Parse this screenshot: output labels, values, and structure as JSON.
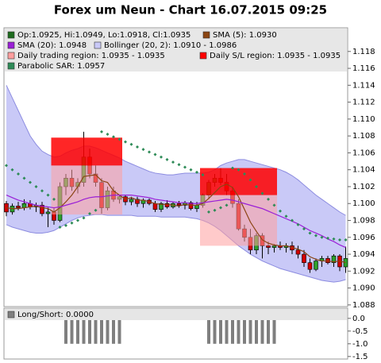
{
  "chart_data": [
    {
      "type": "candlestick",
      "title": "Forex um Neun - Chart 16.07.2015 09:25",
      "ylim": [
        1.0878,
        1.1208
      ],
      "yticks": [
        1.088,
        {
          "value": 1.09,
          "label": "1.090"
        },
        1.092,
        1.094,
        1.096,
        1.098,
        {
          "value": 1.1,
          "label": "1.100"
        },
        1.102,
        1.104,
        1.106,
        1.108,
        {
          "value": 1.11,
          "label": "1.110"
        },
        1.112,
        1.114,
        1.116,
        1.118
      ],
      "ohlc_name": "Op:1.0925, Hi:1.0949, Lo:1.0918, Cl:1.0935",
      "ohlc_color": "#1e6b1e",
      "up_color": "#2ca02c",
      "down_color": "#d40000",
      "open": [
        1.1,
        1.099,
        1.0997,
        1.0995,
        1.1,
        1.0996,
        1.0998,
        1.0988,
        1.099,
        1.098,
        1.102,
        1.103,
        1.102,
        1.1025,
        1.1055,
        1.1035,
        1.1025,
        1.0995,
        1.1015,
        1.1005,
        1.1008,
        1.1002,
        1.1005,
        1.1,
        1.1004,
        1.1,
        1.0993,
        1.1,
        1.0996,
        1.1,
        1.0998,
        1.1001,
        1.0994,
        1.0998,
        1.101,
        1.1025,
        1.103,
        1.1025,
        1.1015,
        1.1,
        1.097,
        1.096,
        1.0945,
        1.0962,
        1.095,
        1.0948,
        1.095,
        1.0948,
        1.095,
        1.0945,
        1.094,
        1.093,
        1.0922,
        1.0932,
        1.0935,
        1.093,
        1.0938,
        1.0925
      ],
      "high": [
        1.1003,
        1.1,
        1.1002,
        1.1005,
        1.1004,
        1.1001,
        1.1002,
        1.0995,
        1.0995,
        1.1025,
        1.1035,
        1.104,
        1.103,
        1.1085,
        1.1065,
        1.1045,
        1.103,
        1.102,
        1.102,
        1.101,
        1.101,
        1.1008,
        1.1008,
        1.1006,
        1.1006,
        1.1003,
        1.1002,
        1.1004,
        1.1002,
        1.1003,
        1.1003,
        1.1003,
        1.1002,
        1.1012,
        1.1028,
        1.1035,
        1.1042,
        1.1035,
        1.102,
        1.1005,
        1.0975,
        1.097,
        1.0965,
        1.0965,
        1.0955,
        1.0952,
        1.0955,
        1.0953,
        1.0955,
        1.095,
        1.0945,
        1.0935,
        1.0935,
        1.0938,
        1.0938,
        1.094,
        1.094,
        1.0949
      ],
      "low": [
        1.0985,
        1.0987,
        1.0992,
        1.0992,
        1.0993,
        1.099,
        1.0985,
        1.0972,
        1.0975,
        1.0978,
        1.101,
        1.1015,
        1.1012,
        1.102,
        1.103,
        1.102,
        1.0988,
        1.0992,
        1.1002,
        1.1,
        1.0998,
        1.0998,
        1.0996,
        1.0995,
        1.0998,
        1.099,
        1.099,
        1.0994,
        1.0994,
        1.0995,
        1.0993,
        1.0992,
        1.099,
        1.0995,
        1.1005,
        1.102,
        1.1022,
        1.101,
        1.0995,
        1.0968,
        1.0955,
        1.094,
        1.094,
        1.0935,
        1.094,
        1.0942,
        1.0945,
        1.0942,
        1.094,
        1.0935,
        1.0925,
        1.0918,
        1.092,
        1.0925,
        1.0928,
        1.0925,
        1.092,
        1.0918
      ],
      "close": [
        1.099,
        1.0997,
        1.0995,
        1.1,
        1.0996,
        1.0998,
        1.0988,
        1.099,
        1.098,
        1.102,
        1.103,
        1.102,
        1.1025,
        1.1055,
        1.1035,
        1.1025,
        1.0995,
        1.1015,
        1.1005,
        1.1008,
        1.1002,
        1.1005,
        1.1,
        1.1004,
        1.1,
        1.0993,
        1.1,
        1.0996,
        1.1,
        1.0998,
        1.1001,
        1.0994,
        1.0998,
        1.101,
        1.1025,
        1.103,
        1.1025,
        1.1015,
        1.1,
        1.097,
        1.096,
        1.0945,
        1.0962,
        1.095,
        1.0948,
        1.095,
        1.0948,
        1.095,
        1.0945,
        1.094,
        1.093,
        1.0922,
        1.0932,
        1.0935,
        1.093,
        1.0938,
        1.0925,
        1.0935
      ],
      "lines": [
        {
          "name": "SMA (5): 1.0930",
          "color": "#8b4513",
          "values": [
            1.0995,
            1.0994,
            1.0994,
            1.0995,
            1.0996,
            1.0997,
            1.0995,
            1.0994,
            1.099,
            1.0995,
            1.1002,
            1.101,
            1.102,
            1.1032,
            1.1033,
            1.1034,
            1.1027,
            1.1025,
            1.1015,
            1.101,
            1.1005,
            1.1007,
            1.1004,
            1.1004,
            1.1002,
            1.1,
            1.0999,
            1.0999,
            1.0998,
            1.0997,
            1.0999,
            1.0998,
            1.0998,
            1.1,
            1.1006,
            1.1013,
            1.102,
            1.1023,
            1.1019,
            1.1008,
            1.0993,
            1.0978,
            1.0967,
            1.0957,
            1.0953,
            1.0951,
            1.095,
            1.095,
            1.0948,
            1.0946,
            1.0943,
            1.0937,
            1.0934,
            1.0932,
            1.0932,
            1.0931,
            1.0932,
            1.093
          ]
        },
        {
          "name": "SMA (20): 1.0948",
          "color": "#9a1fd6",
          "values": [
            1.101,
            1.1007,
            1.1004,
            1.1002,
            1.1,
            1.0998,
            1.0997,
            1.0996,
            1.0995,
            1.0996,
            1.0998,
            1.1,
            1.1002,
            1.1005,
            1.1007,
            1.1008,
            1.1008,
            1.1009,
            1.101,
            1.101,
            1.101,
            1.101,
            1.1009,
            1.1008,
            1.1007,
            1.1005,
            1.1004,
            1.1003,
            1.1002,
            1.1001,
            1.1001,
            1.1,
            1.1,
            1.1001,
            1.1002,
            1.1003,
            1.1004,
            1.1005,
            1.1004,
            1.1002,
            1.1,
            1.0998,
            1.0996,
            1.0994,
            1.0991,
            1.0988,
            1.0985,
            1.0982,
            1.0979,
            1.0976,
            1.0972,
            1.0968,
            1.0965,
            1.0962,
            1.0958,
            1.0955,
            1.0951,
            1.0948
          ]
        }
      ],
      "band": {
        "name": "Bollinger (20, 2): 1.0910 - 1.0986",
        "color": "#c9c9f7",
        "edge_color": "#8c8ce0",
        "upper": [
          1.114,
          1.1125,
          1.111,
          1.1095,
          1.108,
          1.107,
          1.1062,
          1.1058,
          1.1055,
          1.1056,
          1.106,
          1.1063,
          1.1065,
          1.1068,
          1.1068,
          1.1066,
          1.1063,
          1.106,
          1.1057,
          1.1054,
          1.105,
          1.1047,
          1.1044,
          1.1041,
          1.1038,
          1.1036,
          1.1035,
          1.1034,
          1.1034,
          1.1035,
          1.1036,
          1.1036,
          1.1036,
          1.1036,
          1.1037,
          1.104,
          1.1045,
          1.1048,
          1.105,
          1.1052,
          1.1052,
          1.105,
          1.1048,
          1.1046,
          1.1044,
          1.1042,
          1.104,
          1.1037,
          1.1033,
          1.1028,
          1.1022,
          1.1016,
          1.101,
          1.1005,
          1.1,
          1.0995,
          1.099,
          1.0986
        ],
        "lower": [
          1.0975,
          1.0972,
          1.097,
          1.0968,
          1.0966,
          1.0965,
          1.0965,
          1.0966,
          1.0968,
          1.0972,
          1.0976,
          1.098,
          1.0983,
          1.0985,
          1.0986,
          1.0987,
          1.0987,
          1.0986,
          1.0986,
          1.0986,
          1.0986,
          1.0986,
          1.0985,
          1.0985,
          1.0985,
          1.0985,
          1.0984,
          1.0984,
          1.0984,
          1.0984,
          1.0984,
          1.0983,
          1.0982,
          1.098,
          1.0977,
          1.0973,
          1.0968,
          1.0962,
          1.0956,
          1.095,
          1.0945,
          1.094,
          1.0936,
          1.0932,
          1.0929,
          1.0926,
          1.0923,
          1.0921,
          1.0919,
          1.0917,
          1.0915,
          1.0913,
          1.0911,
          1.0909,
          1.0908,
          1.0907,
          1.0908,
          1.091
        ]
      },
      "regions": [
        {
          "name": "Daily trading region: 1.0935 - 1.0935",
          "color": "#ff9e9e",
          "spans": [
            {
              "x": [
                8,
                19
              ],
              "y": [
                1.0987,
                1.1045
              ]
            },
            {
              "x": [
                33,
                45
              ],
              "y": [
                1.095,
                1.101
              ]
            }
          ]
        },
        {
          "name": "Daily S/L region: 1.0935 - 1.0935",
          "color": "#ff0000",
          "spans": [
            {
              "x": [
                8,
                19
              ],
              "y": [
                1.1045,
                1.1078
              ]
            },
            {
              "x": [
                33,
                45
              ],
              "y": [
                1.101,
                1.1042
              ]
            }
          ]
        }
      ],
      "sar": {
        "name": "Parabolic SAR: 1.0957",
        "color": "#2e8b57",
        "values": [
          1.1045,
          1.104,
          1.1035,
          1.103,
          1.1025,
          1.102,
          1.1015,
          1.101,
          1.1005,
          1.0972,
          1.0974,
          1.0977,
          1.098,
          1.0983,
          1.0988,
          1.0992,
          1.1085,
          1.1082,
          1.1079,
          1.1076,
          1.1073,
          1.107,
          1.1067,
          1.1064,
          1.1061,
          1.1058,
          1.1055,
          1.1052,
          1.1049,
          1.1046,
          1.1043,
          1.104,
          1.1037,
          1.1034,
          1.099,
          1.0992,
          1.0995,
          1.0998,
          1.1042,
          1.104,
          1.1035,
          1.1028,
          1.102,
          1.1012,
          1.1005,
          1.0998,
          1.0991,
          1.0985,
          1.098,
          1.0975,
          1.097,
          1.0965,
          1.0962,
          1.096,
          1.0959,
          1.0958,
          1.0957,
          1.0957
        ]
      }
    },
    {
      "type": "bar",
      "name": "Long/Short: 0.0000",
      "color": "#7f7f7f",
      "ylim": [
        -1.6,
        0.4
      ],
      "yticks": [
        {
          "value": 0,
          "label": "0.0"
        },
        -0.5,
        {
          "value": -1,
          "label": "-1.0"
        },
        -1.5
      ],
      "values": [
        0,
        0,
        0,
        0,
        0,
        0,
        0,
        0,
        0,
        0,
        -1,
        -1,
        -1,
        -1,
        -1,
        -1,
        -1,
        -1,
        -1,
        -1,
        0,
        0,
        0,
        0,
        0,
        0,
        0,
        0,
        0,
        0,
        0,
        0,
        0,
        0,
        -1,
        -1,
        -1,
        -1,
        -1,
        -1,
        -1,
        -1,
        -1,
        -1,
        -1,
        -1,
        0,
        0,
        0,
        0,
        0,
        0,
        0,
        0,
        0,
        0,
        0,
        0
      ]
    }
  ]
}
